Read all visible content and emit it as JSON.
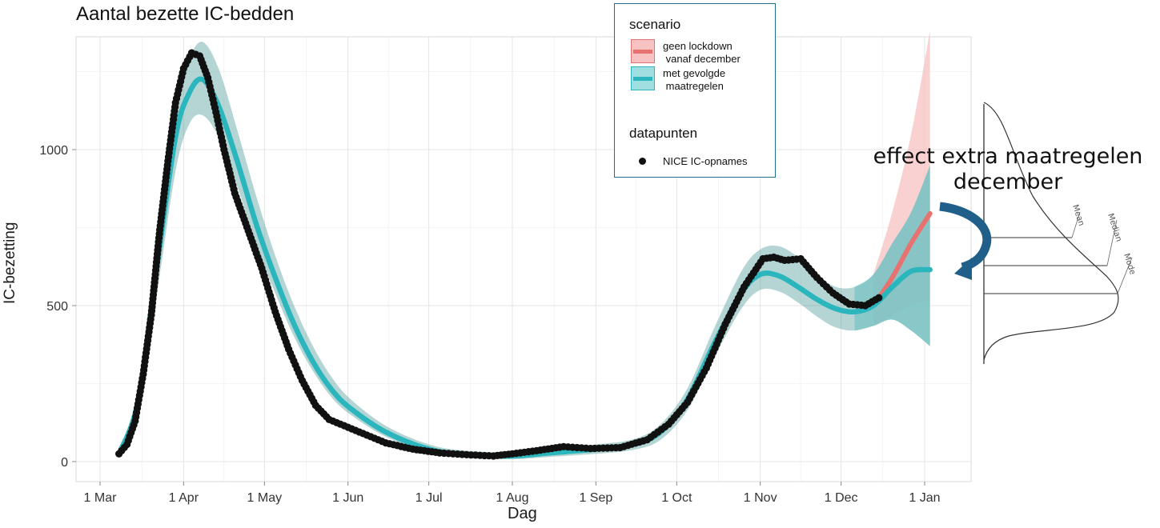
{
  "chart_data": {
    "type": "line",
    "title": "Aantal bezette IC-bedden",
    "xlabel": "Dag",
    "ylabel": "IC-bezetting",
    "x_ticks": [
      "1 Mar",
      "1 Apr",
      "1 May",
      "1 Jun",
      "1 Jul",
      "1 Aug",
      "1 Sep",
      "1 Oct",
      "1 Nov",
      "1 Dec",
      "1 Jan"
    ],
    "y_ticks": [
      "0",
      "500",
      "1000"
    ],
    "ylim": [
      -60,
      1400
    ],
    "grid": true,
    "legend_position": "top-right",
    "legend": {
      "scenario_title": "scenario",
      "scenario_items": [
        {
          "label": "geen lockdown\n vanaf december",
          "color": "#e8726f",
          "band_color": "#f7c2c2"
        },
        {
          "label": "met gevolgde\n maatregelen",
          "color": "#2bb5bd",
          "band_color": "#9fdfe2"
        }
      ],
      "points_title": "datapunten",
      "points_label": "NICE IC-opnames"
    },
    "series": [
      {
        "name": "met gevolgde maatregelen",
        "color": "#2bb5bd",
        "x": [
          "2020-03-08",
          "2020-03-15",
          "2020-03-22",
          "2020-03-29",
          "2020-04-03",
          "2020-04-08",
          "2020-04-14",
          "2020-04-21",
          "2020-04-28",
          "2020-05-05",
          "2020-05-12",
          "2020-05-19",
          "2020-05-26",
          "2020-06-02",
          "2020-06-15",
          "2020-07-01",
          "2020-07-15",
          "2020-08-01",
          "2020-08-15",
          "2020-09-01",
          "2020-09-15",
          "2020-09-25",
          "2020-10-05",
          "2020-10-15",
          "2020-10-25",
          "2020-11-01",
          "2020-11-08",
          "2020-11-15",
          "2020-11-22",
          "2020-11-29",
          "2020-12-06",
          "2020-12-13",
          "2020-12-20",
          "2020-12-27",
          "2021-01-03"
        ],
        "mean": [
          25,
          190,
          620,
          1040,
          1180,
          1225,
          1140,
          960,
          760,
          590,
          440,
          320,
          230,
          170,
          95,
          40,
          22,
          18,
          28,
          40,
          55,
          95,
          200,
          380,
          540,
          600,
          595,
          560,
          520,
          490,
          480,
          500,
          560,
          610,
          615
        ],
        "lower": [
          15,
          150,
          530,
          930,
          1080,
          1110,
          1040,
          880,
          690,
          540,
          400,
          290,
          205,
          150,
          80,
          28,
          12,
          8,
          15,
          25,
          38,
          70,
          165,
          335,
          490,
          550,
          545,
          510,
          465,
          430,
          420,
          435,
          455,
          420,
          370
        ],
        "upper": [
          35,
          230,
          710,
          1150,
          1290,
          1345,
          1260,
          1060,
          850,
          660,
          500,
          370,
          270,
          200,
          115,
          55,
          35,
          30,
          42,
          55,
          72,
          120,
          235,
          430,
          610,
          680,
          690,
          655,
          600,
          560,
          560,
          600,
          700,
          800,
          950
        ]
      },
      {
        "name": "geen lockdown vanaf december",
        "color": "#e8726f",
        "x": [
          "2020-12-13",
          "2020-12-20",
          "2020-12-27",
          "2021-01-03"
        ],
        "mean": [
          500,
          590,
          700,
          795
        ],
        "lower": [
          435,
          470,
          500,
          520
        ],
        "upper": [
          600,
          800,
          1050,
          1380
        ]
      },
      {
        "name": "NICE IC-opnames",
        "color": "#111111",
        "x": [
          "2020-03-08",
          "2020-03-11",
          "2020-03-14",
          "2020-03-17",
          "2020-03-20",
          "2020-03-23",
          "2020-03-26",
          "2020-03-29",
          "2020-04-01",
          "2020-04-04",
          "2020-04-07",
          "2020-04-10",
          "2020-04-13",
          "2020-04-16",
          "2020-04-20",
          "2020-04-25",
          "2020-04-30",
          "2020-05-05",
          "2020-05-10",
          "2020-05-15",
          "2020-05-20",
          "2020-05-25",
          "2020-06-01",
          "2020-06-08",
          "2020-06-15",
          "2020-06-25",
          "2020-07-05",
          "2020-07-15",
          "2020-07-25",
          "2020-08-01",
          "2020-08-10",
          "2020-08-20",
          "2020-08-30",
          "2020-09-10",
          "2020-09-20",
          "2020-09-28",
          "2020-10-05",
          "2020-10-12",
          "2020-10-19",
          "2020-10-26",
          "2020-11-02",
          "2020-11-06",
          "2020-11-10",
          "2020-11-16",
          "2020-11-22",
          "2020-11-28",
          "2020-12-04",
          "2020-12-10",
          "2020-12-15"
        ],
        "y": [
          25,
          55,
          130,
          280,
          470,
          730,
          950,
          1150,
          1260,
          1310,
          1300,
          1230,
          1120,
          1000,
          860,
          740,
          620,
          480,
          360,
          260,
          180,
          135,
          110,
          85,
          60,
          40,
          28,
          22,
          18,
          25,
          35,
          48,
          42,
          45,
          70,
          120,
          190,
          300,
          440,
          560,
          650,
          655,
          645,
          650,
          590,
          540,
          505,
          500,
          525
        ]
      }
    ],
    "annotation": "effect extra maatregelen december",
    "distribution_labels": [
      "Mean",
      "Median",
      "Mode"
    ]
  }
}
